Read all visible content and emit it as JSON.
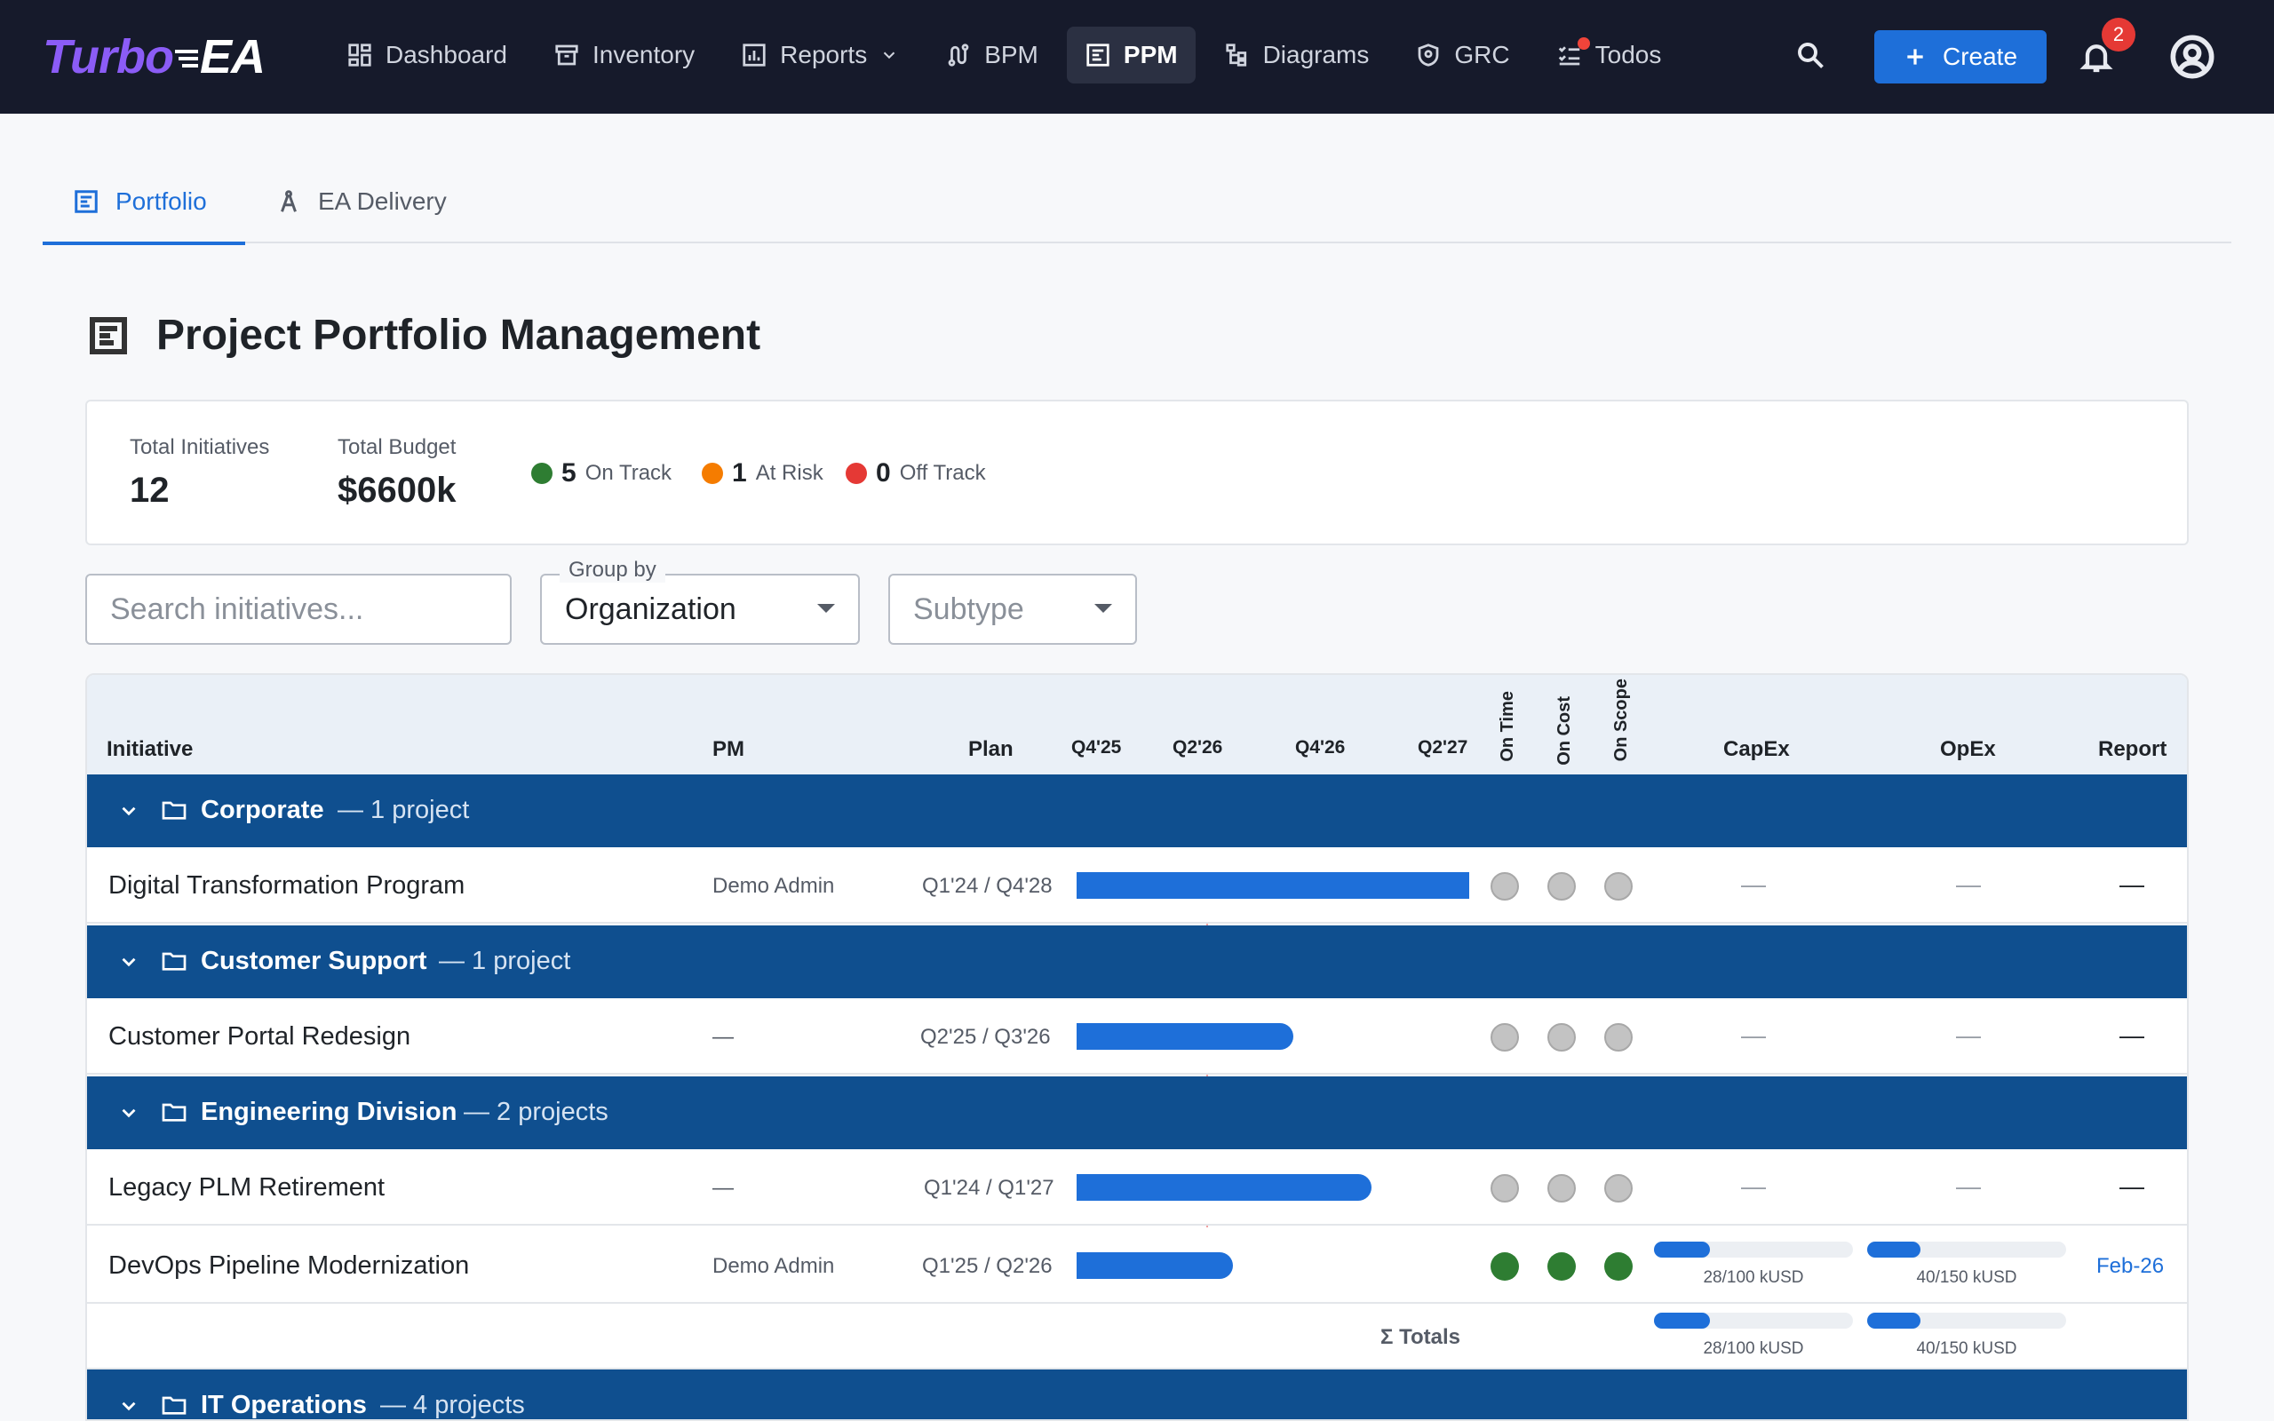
{
  "app": {
    "logo_a": "Turbo",
    "logo_b": "EA"
  },
  "nav": [
    {
      "label": "Dashboard"
    },
    {
      "label": "Inventory"
    },
    {
      "label": "Reports"
    },
    {
      "label": "BPM"
    },
    {
      "label": "PPM"
    },
    {
      "label": "Diagrams"
    },
    {
      "label": "GRC"
    },
    {
      "label": "Todos"
    }
  ],
  "header": {
    "create_label": "Create",
    "notification_count": "2"
  },
  "tabs": [
    {
      "label": "Portfolio"
    },
    {
      "label": "EA Delivery"
    }
  ],
  "page": {
    "title": "Project Portfolio Management"
  },
  "summary": {
    "total_initiatives_label": "Total Initiatives",
    "total_initiatives": "12",
    "total_budget_label": "Total Budget",
    "total_budget": "$6600k",
    "on_track_count": "5",
    "on_track_label": "On Track",
    "at_risk_count": "1",
    "at_risk_label": "At Risk",
    "off_track_count": "0",
    "off_track_label": "Off Track"
  },
  "filters": {
    "search_placeholder": "Search initiatives...",
    "group_by_label": "Group by",
    "group_by_value": "Organization",
    "subtype_placeholder": "Subtype"
  },
  "table": {
    "headers": {
      "initiative": "Initiative",
      "pm": "PM",
      "plan": "Plan",
      "q1": "Q4'25",
      "q2": "Q2'26",
      "q3": "Q4'26",
      "q4": "Q2'27",
      "on_time": "On Time",
      "on_cost": "On Cost",
      "on_scope": "On Scope",
      "capex": "CapEx",
      "opex": "OpEx",
      "report": "Report"
    },
    "groups": [
      {
        "name": "Corporate",
        "count": "— 1 project"
      },
      {
        "name": "Customer Support",
        "count": "— 1 project"
      },
      {
        "name": "Engineering Division",
        "count": "— 2 projects"
      },
      {
        "name": "IT Operations",
        "count": "— 4 projects"
      }
    ],
    "rows": [
      {
        "name": "Digital Transformation Program",
        "pm": "Demo Admin",
        "plan": "Q1'24 / Q4'28",
        "capex": "—",
        "opex": "—",
        "report": "—"
      },
      {
        "name": "Customer Portal Redesign",
        "pm": "—",
        "plan": "Q2'25 / Q3'26",
        "capex": "—",
        "opex": "—",
        "report": "—"
      },
      {
        "name": "Legacy PLM Retirement",
        "pm": "—",
        "plan": "Q1'24 / Q1'27",
        "capex": "—",
        "opex": "—",
        "report": "—"
      },
      {
        "name": "DevOps Pipeline Modernization",
        "pm": "Demo Admin",
        "plan": "Q1'25 / Q2'26",
        "capex": "28/100 kUSD",
        "opex": "40/150 kUSD",
        "report": "Feb-26",
        "capex_fill": 0.28,
        "opex_fill": 0.27
      }
    ],
    "totals": {
      "label": "Σ Totals",
      "capex": "28/100 kUSD",
      "opex": "40/150 kUSD",
      "capex_fill": 0.28,
      "opex_fill": 0.27
    }
  },
  "colors": {
    "brand": "#1e6fd9",
    "on_track": "#2e7d32",
    "at_risk": "#f57c00",
    "off_track": "#e53935",
    "group_header": "#0f4f8f"
  }
}
